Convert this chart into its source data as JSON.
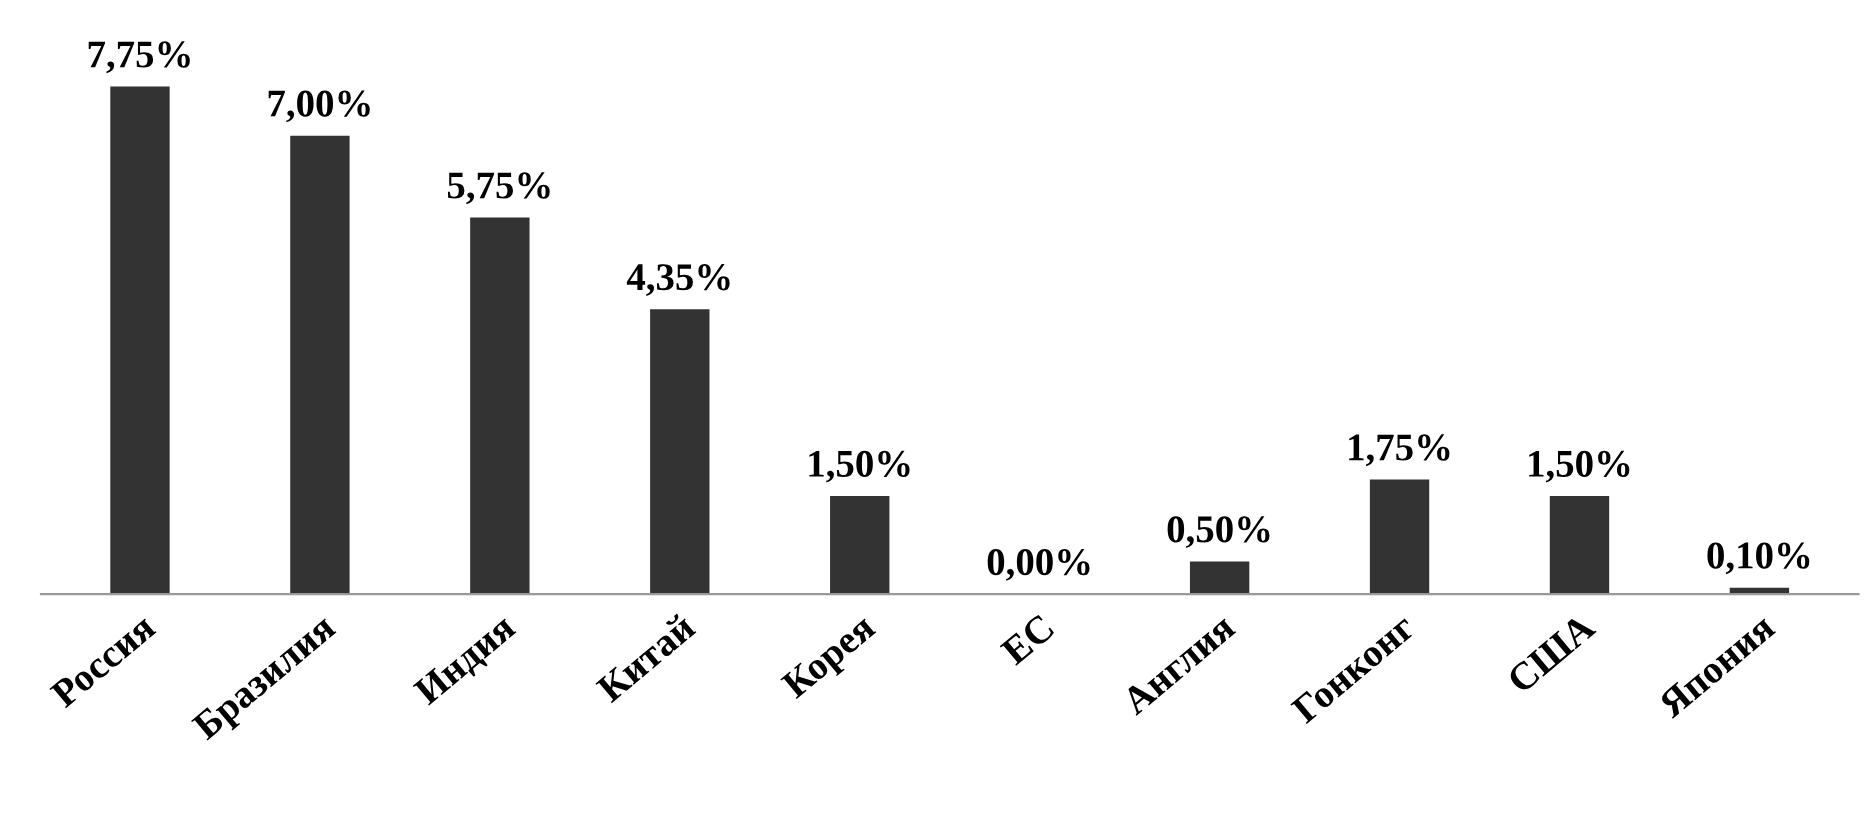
{
  "chart_data": {
    "type": "bar",
    "categories": [
      "Россия",
      "Бразилия",
      "Индия",
      "Китай",
      "Корея",
      "ЕС",
      "Англия",
      "Гонконг",
      "США",
      "Япония"
    ],
    "values": [
      7.75,
      7.0,
      5.75,
      4.35,
      1.5,
      0.0,
      0.5,
      1.75,
      1.5,
      0.1
    ],
    "value_labels": [
      "7,75%",
      "7,00%",
      "5,75%",
      "4,35%",
      "1,50%",
      "0,00%",
      "0,50%",
      "1,75%",
      "1,50%",
      "0,10%"
    ],
    "color": "#333333",
    "tick_labels": "x",
    "grid": false,
    "legend": false
  }
}
